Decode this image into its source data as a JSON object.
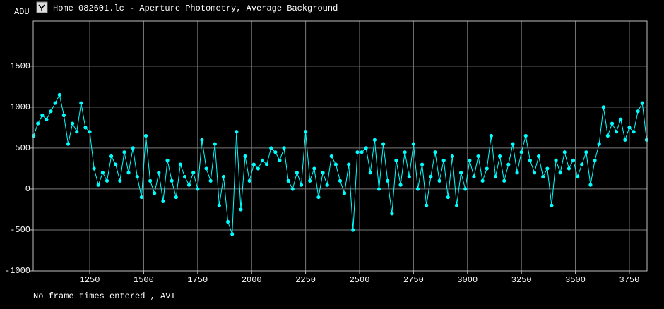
{
  "chart_data": {
    "type": "line",
    "title": "Home 082601.lc - Aperture Photometry, Average Background",
    "y_label": "ADU",
    "status": "No frame times entered , AVI",
    "color": "#00ffff",
    "grid": true,
    "xlim": [
      988,
      3832
    ],
    "ylim": [
      -1000,
      2050
    ],
    "xticks": [
      1250,
      1500,
      1750,
      2000,
      2250,
      2500,
      2750,
      3000,
      3250,
      3500,
      3750
    ],
    "yticks": [
      -1000,
      -500,
      0,
      500,
      1000,
      1500
    ],
    "x": [
      990,
      1010,
      1030,
      1050,
      1070,
      1090,
      1110,
      1130,
      1150,
      1170,
      1190,
      1210,
      1230,
      1250,
      1270,
      1290,
      1310,
      1330,
      1350,
      1370,
      1390,
      1410,
      1430,
      1450,
      1470,
      1490,
      1510,
      1530,
      1550,
      1570,
      1590,
      1610,
      1630,
      1650,
      1670,
      1690,
      1710,
      1730,
      1750,
      1770,
      1790,
      1810,
      1830,
      1850,
      1870,
      1890,
      1910,
      1930,
      1950,
      1970,
      1990,
      2010,
      2030,
      2050,
      2070,
      2090,
      2110,
      2130,
      2150,
      2170,
      2190,
      2210,
      2230,
      2250,
      2270,
      2290,
      2310,
      2330,
      2350,
      2370,
      2390,
      2410,
      2430,
      2450,
      2470,
      2490,
      2510,
      2530,
      2550,
      2570,
      2590,
      2610,
      2630,
      2650,
      2670,
      2690,
      2710,
      2730,
      2750,
      2770,
      2790,
      2810,
      2830,
      2850,
      2870,
      2890,
      2910,
      2930,
      2950,
      2970,
      2990,
      3010,
      3030,
      3050,
      3070,
      3090,
      3110,
      3130,
      3150,
      3170,
      3190,
      3210,
      3230,
      3250,
      3270,
      3290,
      3310,
      3330,
      3350,
      3370,
      3390,
      3410,
      3430,
      3450,
      3470,
      3490,
      3510,
      3530,
      3550,
      3570,
      3590,
      3610,
      3630,
      3650,
      3670,
      3690,
      3710,
      3730,
      3750,
      3770,
      3790,
      3810,
      3830
    ],
    "values": [
      650,
      800,
      900,
      850,
      950,
      1050,
      1150,
      900,
      550,
      800,
      700,
      1050,
      750,
      700,
      250,
      50,
      200,
      100,
      400,
      300,
      100,
      450,
      200,
      500,
      150,
      -100,
      650,
      100,
      -50,
      200,
      -150,
      350,
      100,
      -100,
      300,
      150,
      50,
      200,
      0,
      600,
      250,
      100,
      550,
      -200,
      150,
      -400,
      -550,
      700,
      -250,
      400,
      100,
      300,
      250,
      350,
      300,
      500,
      450,
      350,
      500,
      100,
      0,
      200,
      50,
      700,
      100,
      250,
      -100,
      200,
      50,
      400,
      300,
      100,
      -50,
      300,
      -500,
      450,
      450,
      500,
      200,
      600,
      0,
      550,
      100,
      -300,
      350,
      50,
      450,
      150,
      550,
      0,
      300,
      -200,
      150,
      450,
      100,
      350,
      -100,
      400,
      -200,
      200,
      0,
      350,
      150,
      400,
      100,
      250,
      650,
      150,
      400,
      100,
      300,
      550,
      200,
      450,
      650,
      350,
      200,
      400,
      150,
      250,
      -200,
      350,
      200,
      450,
      250,
      350,
      150,
      300,
      450,
      50,
      350,
      550,
      1000,
      650,
      800,
      700,
      850,
      600,
      750,
      700,
      950,
      1050,
      600
    ]
  }
}
